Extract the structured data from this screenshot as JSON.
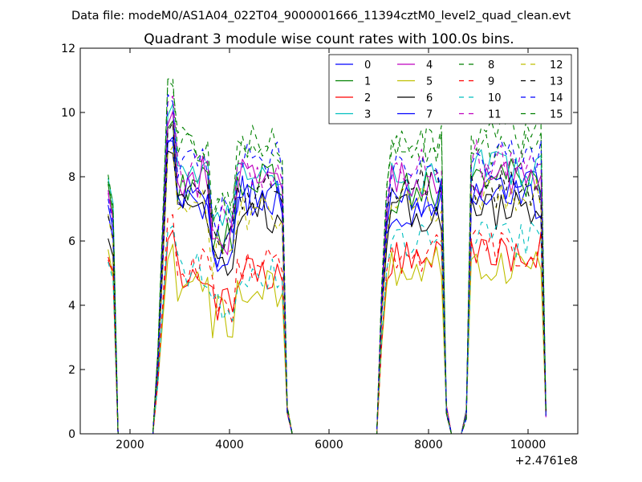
{
  "suptitle": "Data file: modeM0/AS1A04_022T04_9000001666_11394cztM0_level2_quad_clean.evt",
  "chart_data": {
    "type": "line",
    "title": "Quadrant 3 module wise count rates with 100.0s bins.",
    "xlabel": "",
    "ylabel": "",
    "x_offset_label": "+2.4761e8",
    "xlim": [
      1000,
      11000
    ],
    "ylim": [
      0,
      12
    ],
    "xticks": [
      2000,
      4000,
      6000,
      8000,
      10000
    ],
    "xtick_labels": [
      "2000",
      "4000",
      "6000",
      "8000",
      "10000"
    ],
    "yticks": [
      0,
      2,
      4,
      6,
      8,
      10,
      12
    ],
    "ytick_labels": [
      "0",
      "2",
      "4",
      "6",
      "8",
      "10",
      "12"
    ],
    "legend_position": "top-right",
    "legend_columns": 4,
    "segments": [
      {
        "start": 1560,
        "end": 1760
      },
      {
        "start": 2560,
        "end": 5160
      },
      {
        "start": 7060,
        "end": 8360
      },
      {
        "start": 8760,
        "end": 10360
      }
    ],
    "series": [
      {
        "name": "0",
        "color": "#0000ff",
        "dash": false,
        "base": [
          6.6,
          7.4,
          7.0,
          7.6
        ]
      },
      {
        "name": "1",
        "color": "#008000",
        "dash": false,
        "base": [
          7.4,
          7.8,
          7.5,
          8.0
        ]
      },
      {
        "name": "2",
        "color": "#ff0000",
        "dash": false,
        "base": [
          5.4,
          5.0,
          5.6,
          5.7
        ]
      },
      {
        "name": "3",
        "color": "#00bfbf",
        "dash": false,
        "base": [
          7.8,
          8.2,
          7.8,
          8.3
        ]
      },
      {
        "name": "4",
        "color": "#bf00bf",
        "dash": false,
        "base": [
          7.2,
          8.0,
          7.8,
          7.9
        ]
      },
      {
        "name": "5",
        "color": "#bfbf00",
        "dash": false,
        "base": [
          5.3,
          4.6,
          5.2,
          5.2
        ]
      },
      {
        "name": "6",
        "color": "#000000",
        "dash": false,
        "base": [
          6.0,
          6.9,
          6.8,
          7.0
        ]
      },
      {
        "name": "7",
        "color": "#0000ff",
        "dash": false,
        "base": [
          6.9,
          7.2,
          7.3,
          7.3
        ]
      },
      {
        "name": "8",
        "color": "#008000",
        "dash": true,
        "base": [
          7.7,
          8.8,
          8.9,
          8.8
        ]
      },
      {
        "name": "9",
        "color": "#ff0000",
        "dash": true,
        "base": [
          5.5,
          5.3,
          5.7,
          5.8
        ]
      },
      {
        "name": "10",
        "color": "#00bfbf",
        "dash": true,
        "base": [
          5.2,
          5.0,
          5.9,
          6.0
        ]
      },
      {
        "name": "11",
        "color": "#bf00bf",
        "dash": true,
        "base": [
          7.3,
          8.3,
          8.3,
          8.5
        ]
      },
      {
        "name": "12",
        "color": "#bfbf00",
        "dash": true,
        "base": [
          6.4,
          7.0,
          7.2,
          7.3
        ]
      },
      {
        "name": "13",
        "color": "#000000",
        "dash": true,
        "base": [
          6.7,
          7.6,
          7.8,
          7.7
        ]
      },
      {
        "name": "14",
        "color": "#0000ff",
        "dash": true,
        "base": [
          7.1,
          8.6,
          8.2,
          8.6
        ]
      },
      {
        "name": "15",
        "color": "#008000",
        "dash": true,
        "base": [
          7.5,
          9.0,
          9.1,
          9.3
        ]
      }
    ]
  }
}
